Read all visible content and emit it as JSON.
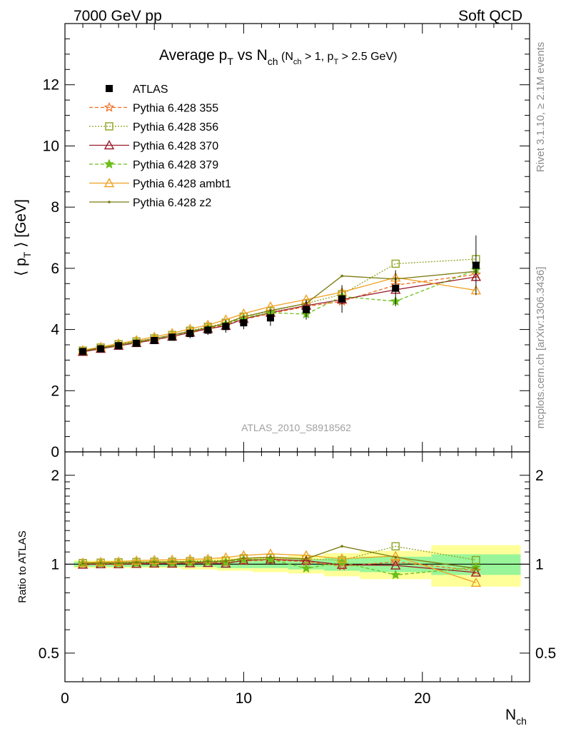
{
  "header": {
    "left": "7000 GeV pp",
    "right": "Soft QCD"
  },
  "side_labels": {
    "rivet": "Rivet 3.1.10, ≥ 2.1M events",
    "mcplots": "mcplots.cern.ch [arXiv:1306.3436]"
  },
  "analysis_id": "ATLAS_2010_S8918562",
  "colors": {
    "atlas": "#000000",
    "p355": "#f26b1d",
    "p356": "#8fa320",
    "p370": "#9b1b2a",
    "p379": "#6bbf1a",
    "ambt1": "#f0a020",
    "z2": "#7a7a10",
    "band_inner": "#99f599",
    "band_outer": "#ffff99"
  },
  "chart_data": {
    "type": "line",
    "title": {
      "main": "Average p",
      "main_sub": "T",
      "vs": " vs N",
      "vs_sub": "ch",
      "cut1": " (N",
      "cut1_sub": "ch",
      "cut2": " > 1, p",
      "cut2_sub": "T",
      "cut3": " > 2.5 GeV)"
    },
    "ylabel": {
      "pre": "⟨ p",
      "sub": "T",
      "post": " ⟩ [GeV]"
    },
    "ylabel_ratio": "Ratio to ATLAS",
    "xlabel": {
      "main": "N",
      "sub": "ch"
    },
    "xlim": [
      0,
      26
    ],
    "ylim": [
      0,
      14
    ],
    "ratio_ylim": [
      0.4,
      2.4
    ],
    "ratio_log": true,
    "x_ticks": [
      0,
      10,
      20
    ],
    "y_ticks": [
      0,
      2,
      4,
      6,
      8,
      10,
      12
    ],
    "ratio_ticks": [
      0.5,
      1,
      2
    ],
    "x": [
      1,
      2,
      3,
      4,
      5,
      6,
      7,
      8,
      9,
      10,
      11.5,
      13.5,
      15.5,
      18.5,
      23
    ],
    "x_err": [
      0.5,
      0.5,
      0.5,
      0.5,
      0.5,
      0.5,
      0.5,
      0.5,
      0.5,
      0.5,
      1,
      1,
      1,
      2,
      2.5
    ],
    "reference": {
      "name": "ATLAS",
      "values": [
        3.28,
        3.37,
        3.47,
        3.55,
        3.64,
        3.75,
        3.87,
        3.98,
        4.1,
        4.22,
        4.38,
        4.65,
        5.0,
        5.35,
        6.1
      ],
      "band_inner": [
        0.02,
        0.02,
        0.02,
        0.02,
        0.02,
        0.02,
        0.02,
        0.02,
        0.03,
        0.03,
        0.03,
        0.04,
        0.05,
        0.06,
        0.08
      ],
      "band_outer": [
        0.03,
        0.03,
        0.03,
        0.03,
        0.03,
        0.03,
        0.04,
        0.04,
        0.05,
        0.05,
        0.06,
        0.07,
        0.09,
        0.11,
        0.16
      ]
    },
    "series": [
      {
        "name": "Pythia 6.428 355",
        "key": "p355",
        "marker": "star-open",
        "dash": "5,3",
        "values": [
          3.3,
          3.39,
          3.5,
          3.58,
          3.68,
          3.79,
          3.92,
          4.05,
          4.15,
          4.33,
          4.52,
          4.75,
          4.92,
          5.45,
          5.8
        ]
      },
      {
        "name": "Pythia 6.428 356",
        "key": "p356",
        "marker": "square-open",
        "dash": "2,2",
        "values": [
          3.31,
          3.41,
          3.52,
          3.61,
          3.71,
          3.82,
          3.96,
          4.09,
          4.22,
          4.42,
          4.6,
          4.85,
          5.15,
          6.15,
          6.3
        ]
      },
      {
        "name": "Pythia 6.428 370",
        "key": "p370",
        "marker": "triangle-open",
        "dash": "",
        "values": [
          3.27,
          3.37,
          3.47,
          3.56,
          3.66,
          3.77,
          3.9,
          4.02,
          4.12,
          4.35,
          4.55,
          4.78,
          4.98,
          5.3,
          5.72
        ]
      },
      {
        "name": "Pythia 6.428 379",
        "key": "p379",
        "marker": "star-filled",
        "dash": "5,3",
        "values": [
          3.3,
          3.39,
          3.49,
          3.59,
          3.69,
          3.8,
          3.93,
          4.06,
          4.18,
          4.38,
          4.55,
          4.5,
          5.08,
          4.92,
          5.95
        ]
      },
      {
        "name": "Pythia 6.428 ambt1",
        "key": "ambt1",
        "marker": "triangle-open",
        "dash": "",
        "values": [
          3.32,
          3.43,
          3.54,
          3.65,
          3.76,
          3.88,
          4.02,
          4.15,
          4.32,
          4.52,
          4.75,
          4.98,
          5.22,
          5.7,
          5.28
        ]
      },
      {
        "name": "Pythia 6.428 z2",
        "key": "z2",
        "marker": "dot",
        "dash": "",
        "values": [
          3.3,
          3.4,
          3.5,
          3.6,
          3.7,
          3.82,
          3.94,
          4.06,
          4.2,
          4.42,
          4.62,
          4.85,
          5.75,
          5.65,
          5.9
        ]
      }
    ]
  }
}
